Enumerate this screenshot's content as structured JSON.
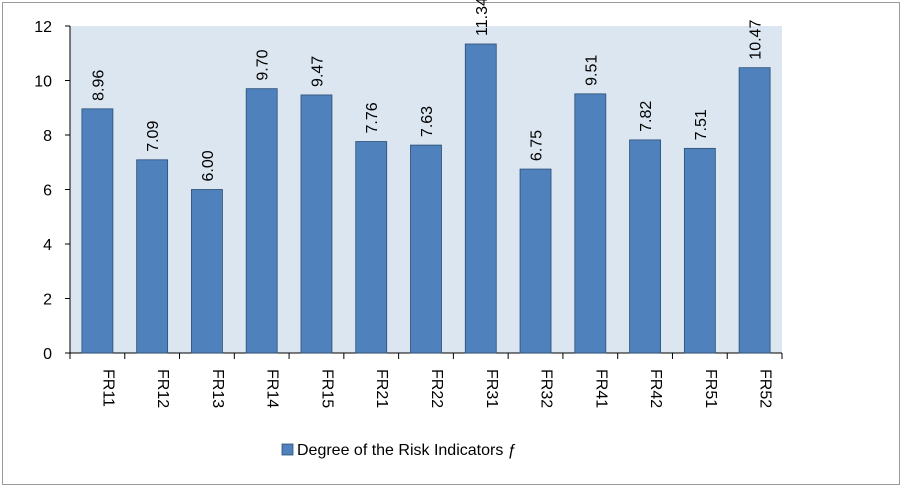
{
  "chart_data": {
    "type": "bar",
    "categories": [
      "FR11",
      "FR12",
      "FR13",
      "FR14",
      "FR15",
      "FR21",
      "FR22",
      "FR31",
      "FR32",
      "FR41",
      "FR42",
      "FR51",
      "FR52"
    ],
    "series": [
      {
        "name": "Degree of the Risk Indicators ƒ",
        "values": [
          8.96,
          7.09,
          6.0,
          9.7,
          9.47,
          7.76,
          7.63,
          11.34,
          6.75,
          9.51,
          7.82,
          7.51,
          10.47
        ],
        "labels": [
          "8.96",
          "7.09",
          "6.00",
          "9.70",
          "9.47",
          "7.76",
          "7.63",
          "11.34",
          "6.75",
          "9.51",
          "7.82",
          "7.51",
          "10.47"
        ]
      }
    ],
    "title": "",
    "xlabel": "",
    "ylabel": "",
    "ylim": [
      0,
      12
    ],
    "yticks": [
      "0",
      "2",
      "4",
      "6",
      "8",
      "10",
      "12"
    ],
    "grid": false,
    "legend_position": "bottom",
    "colors": {
      "bar": "#4f81bd",
      "bar_edge": "#2c4d75",
      "plot_background": "#dce6f1",
      "axis": "#000000"
    }
  }
}
